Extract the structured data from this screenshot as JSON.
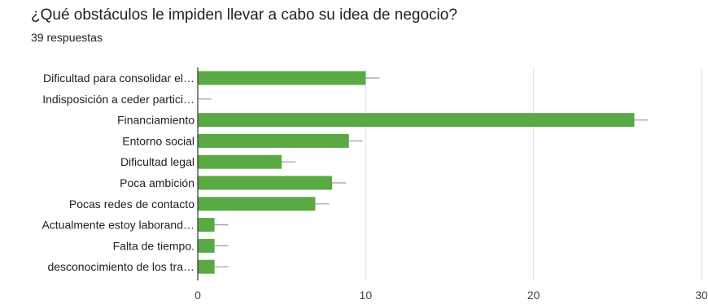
{
  "header": {
    "title": "¿Qué obstáculos le impiden llevar a cabo su idea de negocio?",
    "responses": "39 respuestas"
  },
  "chart_data": {
    "type": "bar",
    "orientation": "horizontal",
    "categories": [
      "Dificultad para consolidar el…",
      "Indisposición a ceder partici…",
      "Financiamiento",
      "Entorno social",
      "Dificultad legal",
      "Poca ambición",
      "Pocas redes de contacto",
      "Actualmente estoy laborand…",
      "Falta de tiempo.",
      "desconocimiento de los tra…"
    ],
    "values": [
      10,
      0,
      26,
      9,
      5,
      8,
      7,
      1,
      1,
      1
    ],
    "title": "",
    "xlabel": "",
    "ylabel": "",
    "xlim": [
      0,
      30
    ],
    "xticks": [
      0,
      10,
      20,
      30
    ],
    "grid": true,
    "legend": "none",
    "bar_color": "#5aa944",
    "error_bar_color": "#9e9e9e",
    "grid_color": "#dedede"
  }
}
